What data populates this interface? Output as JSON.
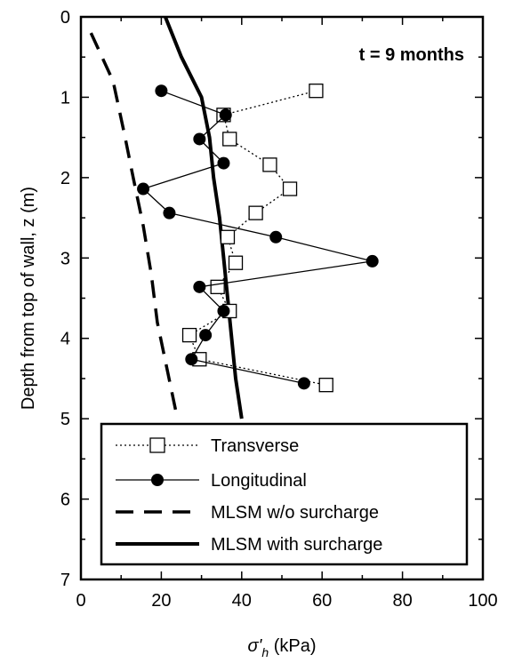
{
  "chart_data": {
    "type": "scatter",
    "orientation": "depth-profile",
    "annotation": "t = 9 months",
    "xlabel": {
      "symbol": "σ'",
      "subscript": "h",
      "unit": " (kPa)"
    },
    "ylabel": "Depth from top of wall, z (m)",
    "xlim": [
      0,
      100
    ],
    "ylim": [
      0,
      7
    ],
    "y_inverted": true,
    "x_ticks": [
      "0",
      "20",
      "40",
      "60",
      "80",
      "100"
    ],
    "y_ticks": [
      "0",
      "1",
      "2",
      "3",
      "4",
      "5",
      "6",
      "7"
    ],
    "grid": false,
    "legend_position": "bottom-left",
    "series": [
      {
        "name": "Transverse",
        "style": "dotted-line-open-square",
        "color": "#000000",
        "points": [
          [
            58.5,
            0.92
          ],
          [
            35.5,
            1.22
          ],
          [
            37.0,
            1.52
          ],
          [
            47.0,
            1.84
          ],
          [
            52.0,
            2.14
          ],
          [
            43.5,
            2.44
          ],
          [
            36.5,
            2.74
          ],
          [
            38.5,
            3.06
          ],
          [
            34.0,
            3.36
          ],
          [
            37.0,
            3.66
          ],
          [
            27.0,
            3.96
          ],
          [
            29.5,
            4.26
          ],
          [
            61.0,
            4.58
          ]
        ]
      },
      {
        "name": "Longitudinal",
        "style": "solid-line-filled-circle",
        "color": "#000000",
        "points": [
          [
            20.0,
            0.92
          ],
          [
            36.0,
            1.22
          ],
          [
            29.5,
            1.52
          ],
          [
            35.5,
            1.82
          ],
          [
            15.5,
            2.14
          ],
          [
            22.0,
            2.44
          ],
          [
            48.5,
            2.74
          ],
          [
            72.5,
            3.04
          ],
          [
            29.5,
            3.36
          ],
          [
            35.5,
            3.66
          ],
          [
            31.0,
            3.96
          ],
          [
            27.5,
            4.26
          ],
          [
            55.5,
            4.56
          ]
        ]
      },
      {
        "name": "MLSM w/o surcharge",
        "style": "dashed-line",
        "color": "#000000",
        "points": [
          [
            2.5,
            0.2
          ],
          [
            8.0,
            0.8
          ],
          [
            11.0,
            1.5
          ],
          [
            13.0,
            2.0
          ],
          [
            15.5,
            2.6
          ],
          [
            17.5,
            3.2
          ],
          [
            19.0,
            3.8
          ],
          [
            21.5,
            4.4
          ],
          [
            24.0,
            5.0
          ]
        ]
      },
      {
        "name": "MLSM with surcharge",
        "style": "solid-thick-line",
        "color": "#000000",
        "points": [
          [
            21.0,
            0.0
          ],
          [
            25.0,
            0.5
          ],
          [
            30.0,
            1.0
          ],
          [
            32.0,
            1.5
          ],
          [
            33.0,
            2.0
          ],
          [
            34.5,
            2.5
          ],
          [
            35.5,
            3.0
          ],
          [
            36.5,
            3.5
          ],
          [
            37.5,
            4.0
          ],
          [
            38.5,
            4.5
          ],
          [
            40.0,
            5.0
          ]
        ]
      }
    ]
  }
}
